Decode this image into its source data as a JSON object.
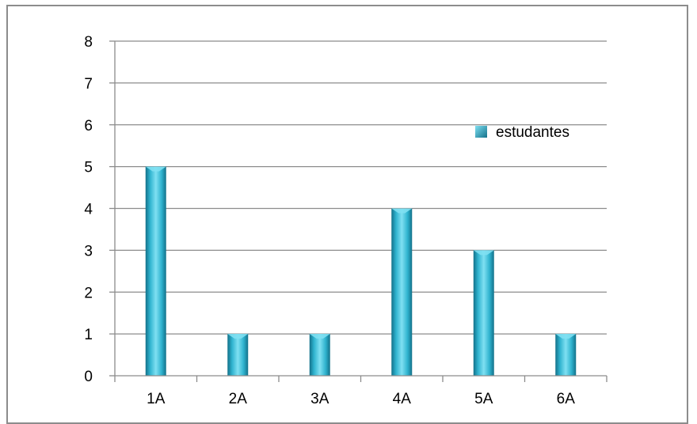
{
  "chart_data": {
    "type": "bar",
    "categories": [
      "1A",
      "2A",
      "3A",
      "4A",
      "5A",
      "6A"
    ],
    "series": [
      {
        "name": "estudantes",
        "values": [
          5,
          1,
          1,
          4,
          3,
          1
        ]
      }
    ],
    "ylim": [
      0,
      8
    ],
    "yticks": [
      0,
      1,
      2,
      3,
      4,
      5,
      6,
      7,
      8
    ],
    "grid": true,
    "legend_position": "right",
    "colors": {
      "bar_light": "#7fe0f2",
      "bar_mid": "#2fb3cf",
      "bar_dark": "#13718a",
      "gridline": "#8c8c8c",
      "axis": "#8c8c8c",
      "frame": "#8c8c8c"
    }
  }
}
